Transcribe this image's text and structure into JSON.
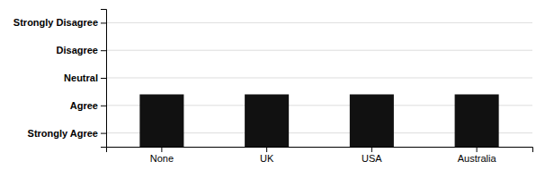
{
  "chart_data": {
    "type": "bar",
    "categories": [
      "None",
      "UK",
      "USA",
      "Australia"
    ],
    "values": [
      5.5,
      5.5,
      5.5,
      5.5
    ],
    "bases": [
      3.6,
      3.6,
      3.6,
      3.6
    ],
    "color": "#111111",
    "ylim": [
      5.5,
      0.5
    ],
    "yticks": [
      {
        "value": 1,
        "label": "Strongly Disagree"
      },
      {
        "value": 2,
        "label": "Disagree"
      },
      {
        "value": 3,
        "label": "Neutral"
      },
      {
        "value": 4,
        "label": "Agree"
      },
      {
        "value": 5,
        "label": "Strongly Agree"
      }
    ],
    "grid": true
  }
}
